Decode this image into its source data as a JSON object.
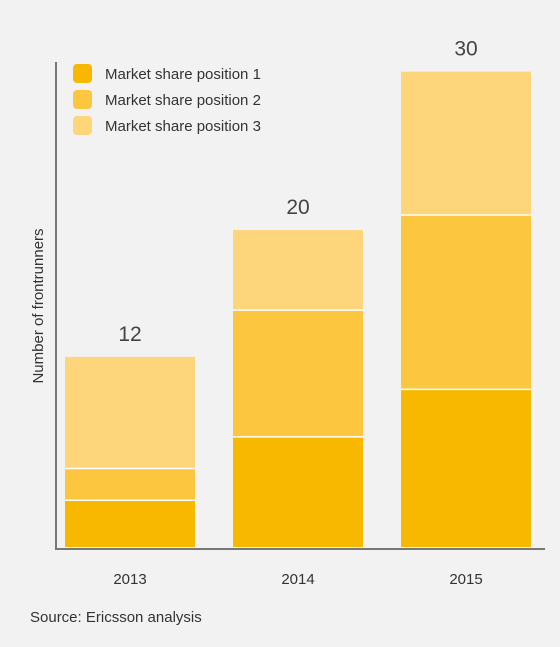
{
  "chart_data": {
    "type": "bar",
    "stacked": true,
    "categories": [
      "2013",
      "2014",
      "2015"
    ],
    "series": [
      {
        "name": "Market share position 1",
        "values": [
          3,
          7,
          10
        ],
        "color": "#f9b800"
      },
      {
        "name": "Market share position 2",
        "values": [
          2,
          8,
          11
        ],
        "color": "#fcc63f"
      },
      {
        "name": "Market share position 3",
        "values": [
          7,
          5,
          9
        ],
        "color": "#fdd57a"
      }
    ],
    "totals": [
      12,
      20,
      30
    ],
    "ylabel": "Number of frontrunners",
    "xlabel": "",
    "ylim": [
      0,
      32
    ],
    "grid": false,
    "legend_position": "top-left"
  },
  "source": "Source: Ericsson analysis"
}
